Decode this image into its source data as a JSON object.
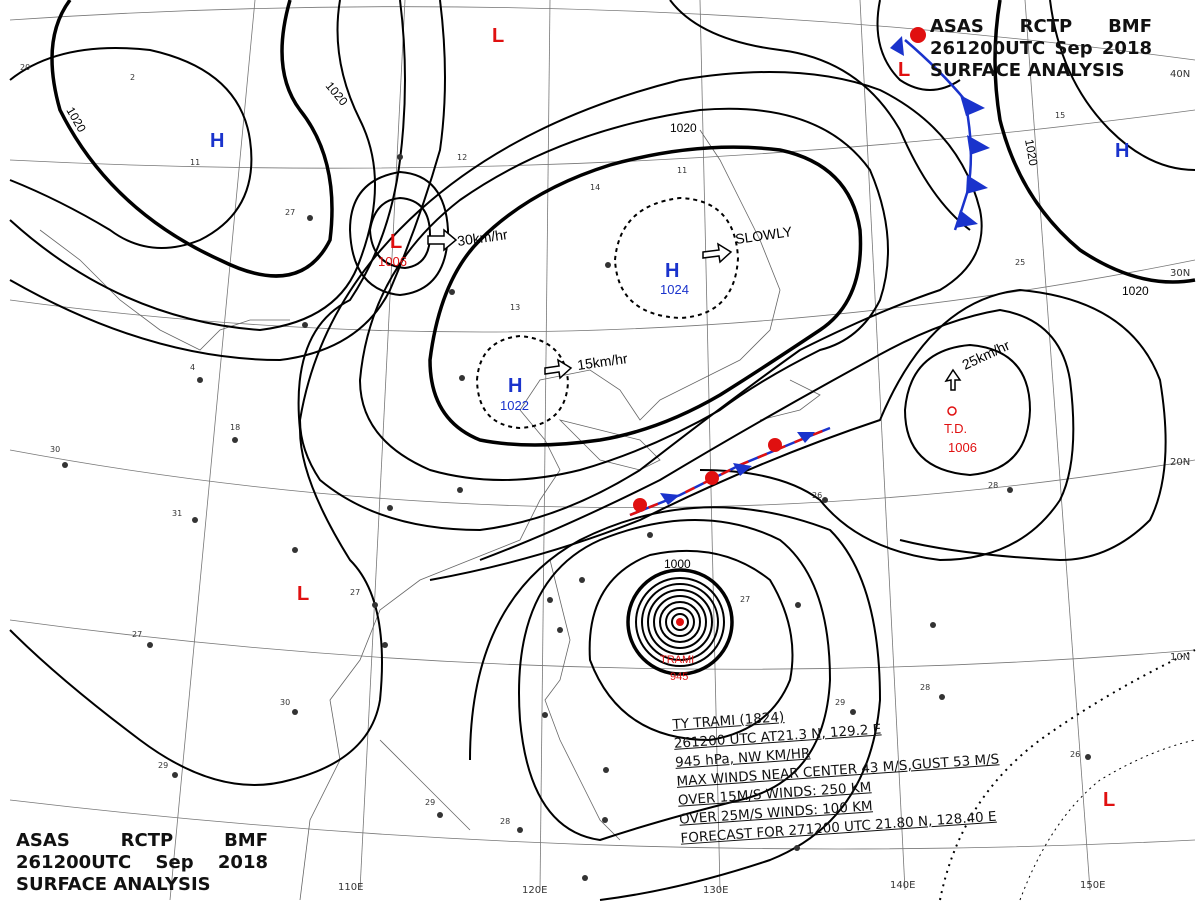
{
  "header_top": {
    "line1": [
      "ASAS",
      "RCTP",
      "BMF"
    ],
    "line2": [
      "261200UTC",
      "Sep",
      "2018"
    ],
    "line3": "SURFACE ANALYSIS"
  },
  "header_bottom": {
    "line1": [
      "ASAS",
      "RCTP",
      "BMF"
    ],
    "line2": [
      "261200UTC",
      "Sep",
      "2018"
    ],
    "line3": "SURFACE ANALYSIS"
  },
  "longitudes": [
    "110E",
    "120E",
    "130E",
    "140E",
    "150E"
  ],
  "latitudes": [
    "40N",
    "30N",
    "20N",
    "10N"
  ],
  "isobar_labels": [
    "1020",
    "1020",
    "1020",
    "1020",
    "1020",
    "1000"
  ],
  "systems": {
    "h_north": {
      "symbol": "H"
    },
    "h_ne": {
      "symbol": "H"
    },
    "h_center": {
      "symbol": "H",
      "pressure": "1024",
      "motion": "SLOWLY"
    },
    "h_west": {
      "symbol": "H",
      "pressure": "1022",
      "motion": "15km/hr"
    },
    "l_north_top": {
      "symbol": "L"
    },
    "l_west": {
      "symbol": "L",
      "pressure": "1006",
      "motion": "30km/hr"
    },
    "l_ne_corner": {
      "symbol": "L"
    },
    "l_south": {
      "symbol": "L"
    },
    "l_se": {
      "symbol": "L"
    },
    "td": {
      "name": "T.D.",
      "pressure": "1006",
      "motion": "25km/hr"
    },
    "typhoon": {
      "name": "TRAMI",
      "pressure": "945"
    }
  },
  "typhoon_info": {
    "line1": "TY  TRAMI  (1824)",
    "line2": "261200 UTC  AT21.3 N, 129.2 E",
    "line3": "945 hPa, NW   KM/HR",
    "line4": "MAX WINDS NEAR CENTER 43 M/S,GUST 53 M/S",
    "line5": "OVER 15M/S WINDS: 250 KM",
    "line6": "OVER 25M/S WINDS: 100 KM",
    "line7": "FORECAST FOR 271200 UTC 21.80 N, 128.40 E"
  },
  "colors": {
    "high": "#1a33cc",
    "low": "#e01010",
    "isobar": "#000000",
    "grid": "#777777"
  }
}
